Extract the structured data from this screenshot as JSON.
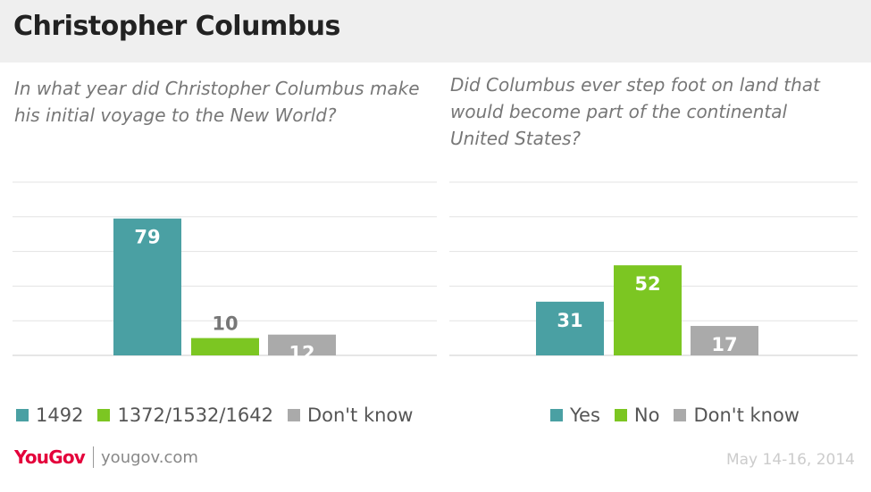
{
  "header": {
    "title": "Christopher Columbus"
  },
  "footer": {
    "logo": "YouGov",
    "site": "yougov.com",
    "date": "May 14-16, 2014"
  },
  "colors": {
    "teal": "#4aa0a3",
    "green": "#7cc622",
    "gray": "#aaaaaa",
    "grid": "#e3e3e3",
    "axis": "#cccccc"
  },
  "chart_data": [
    {
      "type": "bar",
      "title": "In what year did Christopher Columbus make his initial voyage to the New World?",
      "categories": [
        "1492",
        "1372/1532/1642",
        "Don't know"
      ],
      "values": [
        79,
        10,
        12
      ],
      "colors": [
        "#4aa0a3",
        "#7cc622",
        "#aaaaaa"
      ],
      "label_colors": [
        "#ffffff",
        "#777777",
        "#ffffff"
      ],
      "ylim": [
        0,
        100
      ],
      "grid": true,
      "legend": "bottom"
    },
    {
      "type": "bar",
      "title": "Did Columbus ever step foot on land that would become part of the continental United States?",
      "categories": [
        "Yes",
        "No",
        "Don't know"
      ],
      "values": [
        31,
        52,
        17
      ],
      "colors": [
        "#4aa0a3",
        "#7cc622",
        "#aaaaaa"
      ],
      "label_colors": [
        "#ffffff",
        "#ffffff",
        "#ffffff"
      ],
      "ylim": [
        0,
        100
      ],
      "grid": true,
      "legend": "bottom"
    }
  ]
}
